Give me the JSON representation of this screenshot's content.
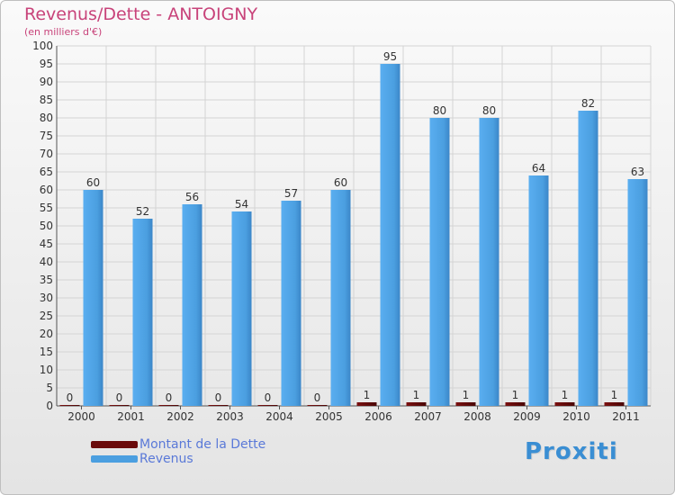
{
  "chart_data": {
    "type": "bar",
    "title": "Revenus/Dette - ANTOIGNY",
    "subtitle": "(en milliers d'€)",
    "categories": [
      "2000",
      "2001",
      "2002",
      "2003",
      "2004",
      "2005",
      "2006",
      "2007",
      "2008",
      "2009",
      "2010",
      "2011"
    ],
    "series": [
      {
        "name": "Montant de la Dette",
        "values": [
          0,
          0,
          0,
          0,
          0,
          0,
          1,
          1,
          1,
          1,
          1,
          1
        ],
        "color": "#6b0a0a"
      },
      {
        "name": "Revenus",
        "values": [
          60,
          52,
          56,
          54,
          57,
          60,
          95,
          80,
          80,
          64,
          82,
          63
        ],
        "color": "#4b9fe0"
      }
    ],
    "ylim": [
      0,
      100
    ],
    "yticks": [
      0,
      5,
      10,
      15,
      20,
      25,
      30,
      35,
      40,
      45,
      50,
      55,
      60,
      65,
      70,
      75,
      80,
      85,
      90,
      95,
      100
    ],
    "grid": true,
    "legend_position": "bottom-left"
  },
  "logo_text": "Proxiti"
}
